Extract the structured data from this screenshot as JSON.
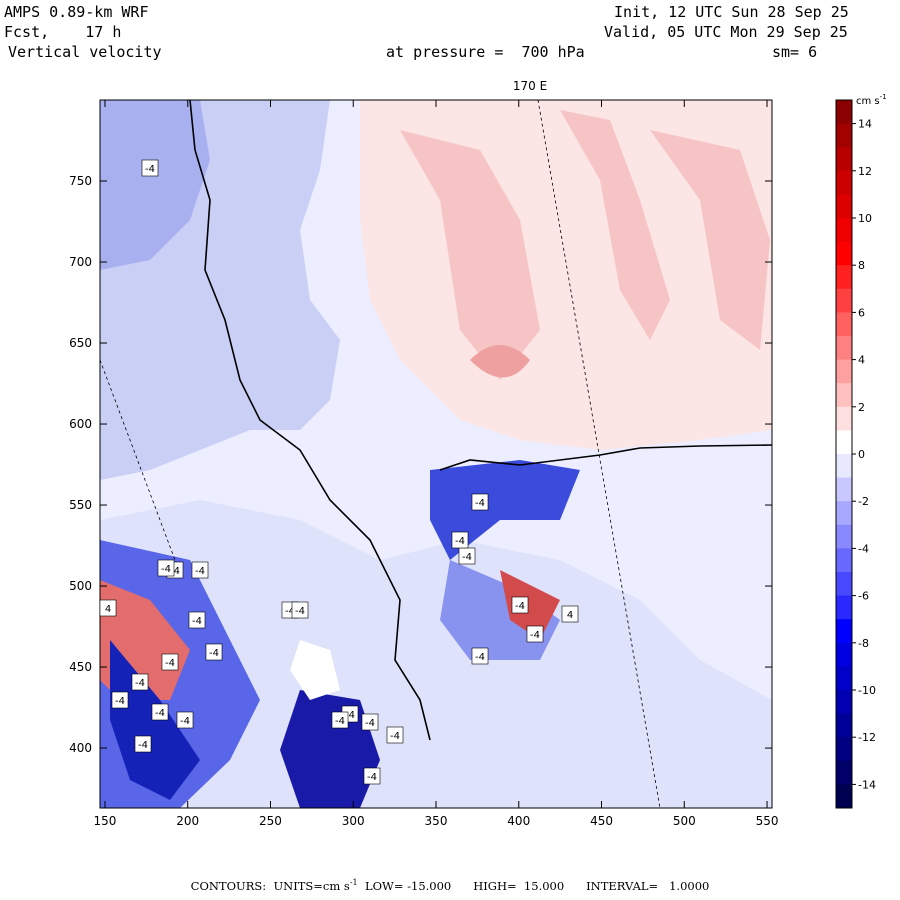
{
  "header": {
    "model": "AMPS 0.89-km WRF",
    "forecast": "Fcst,    17 h",
    "field": "Vertical velocity",
    "init": "Init, 12 UTC Sun 28 Sep 25",
    "valid": "Valid, 05 UTC Mon 29 Sep 25",
    "level": "at pressure =  700 hPa",
    "smoothing": "sm= 6"
  },
  "map": {
    "meridian_label": "170 E",
    "x_ticks": [
      "150",
      "200",
      "250",
      "300",
      "350",
      "400",
      "450",
      "500",
      "550"
    ],
    "y_ticks": [
      "400",
      "450",
      "500",
      "550",
      "600",
      "650",
      "700",
      "750"
    ],
    "x_range": [
      147,
      553
    ],
    "y_range": [
      363,
      800
    ],
    "contour_labels": [
      "-4",
      "-4",
      "-4",
      "4",
      "-4",
      "-4",
      "-4",
      "-4",
      "-4",
      "-4",
      "-4",
      "-4",
      "-4",
      "-4",
      "4",
      "-4",
      "-4",
      "-4",
      "-4",
      "-4",
      "-4",
      "-4",
      "-4",
      "-4",
      "-4",
      "-4",
      "-4"
    ]
  },
  "colorbar": {
    "units": "cm s",
    "units_exp": "-1",
    "tick_labels": [
      "14",
      "12",
      "10",
      "8",
      "6",
      "4",
      "2",
      "0",
      "-2",
      "-4",
      "-6",
      "-8",
      "-10",
      "-12",
      "-14"
    ],
    "colors_top_to_bottom": [
      "#8b0000",
      "#a30000",
      "#b80000",
      "#cc0000",
      "#dd0000",
      "#ee0000",
      "#ff0000",
      "#ff2020",
      "#ff4040",
      "#ff6060",
      "#ff8080",
      "#ffa0a0",
      "#ffc0c0",
      "#ffe0e0",
      "#ffffff",
      "#e8e8ff",
      "#c8c8ff",
      "#a8a8ff",
      "#8888ff",
      "#6868ff",
      "#4848ff",
      "#2828ff",
      "#0000ff",
      "#0000e0",
      "#0000c8",
      "#0000b0",
      "#000098",
      "#000080",
      "#000068",
      "#000050"
    ]
  },
  "footer": {
    "contours_label": "CONTOURS:",
    "units_label": "UNITS=cm s",
    "units_exp": "-1",
    "low": "LOW= -15.000",
    "high": "HIGH=  15.000",
    "interval": "INTERVAL=   1.0000"
  }
}
